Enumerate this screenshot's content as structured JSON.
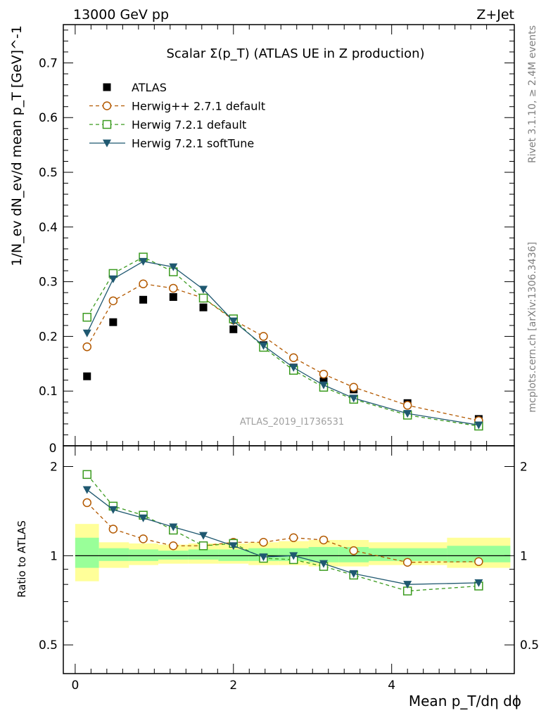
{
  "header": {
    "energy": "13000 GeV pp",
    "process": "Z+Jet"
  },
  "side_labels": {
    "rivet": "Rivet 3.1.10, ≥ 2.4M events",
    "mcplots": "mcplots.cern.ch [arXiv:1306.3436]"
  },
  "chart_data": [
    {
      "type": "scatter",
      "panel": "main",
      "title": "Scalar Σ(p_T) (ATLAS UE in Z production)",
      "xlabel": "Mean p_T/dη dϕ",
      "ylabel": "1/N_ev dN_ev/d mean p_T [GeV]^-1",
      "xlim": [
        -0.15,
        5.55
      ],
      "ylim": [
        0,
        0.77
      ],
      "y_ticks": [
        "0.1",
        "0.2",
        "0.3",
        "0.4",
        "0.5",
        "0.6",
        "0.7"
      ],
      "reference": "ATLAS_2019_I1736531",
      "legend_position": "top-left",
      "x": [
        0.15,
        0.48,
        0.86,
        1.24,
        1.62,
        2.0,
        2.38,
        2.76,
        3.14,
        3.52,
        4.2,
        5.1
      ],
      "series": [
        {
          "name": "ATLAS",
          "style": "data",
          "color": "#000000",
          "values": [
            0.127,
            0.226,
            0.267,
            0.272,
            0.253,
            0.213,
            0.184,
            0.143,
            0.118,
            0.103,
            0.078,
            0.049
          ]
        },
        {
          "name": "Herwig++ 2.7.1 default",
          "style": "circle-dashed",
          "color": "#b35900",
          "values": [
            0.181,
            0.265,
            0.296,
            0.288,
            0.27,
            0.23,
            0.2,
            0.161,
            0.131,
            0.107,
            0.074,
            0.046
          ]
        },
        {
          "name": "Herwig 7.2.1 default",
          "style": "square-dashed",
          "color": "#3a9a1e",
          "values": [
            0.235,
            0.315,
            0.345,
            0.318,
            0.27,
            0.232,
            0.18,
            0.138,
            0.107,
            0.085,
            0.056,
            0.036
          ]
        },
        {
          "name": "Herwig 7.2.1 softTune",
          "style": "triangle-solid",
          "color": "#1f5870",
          "values": [
            0.206,
            0.305,
            0.337,
            0.327,
            0.286,
            0.228,
            0.183,
            0.143,
            0.111,
            0.087,
            0.059,
            0.038
          ]
        }
      ]
    },
    {
      "type": "line",
      "panel": "ratio",
      "ylabel": "Ratio to ATLAS",
      "scale": "log",
      "ylim": [
        0.4,
        2.35
      ],
      "x_ticks": [
        "0",
        "2",
        "4"
      ],
      "y_ticks": [
        "0.5",
        "1",
        "2"
      ],
      "band_edges": [
        0,
        0.3,
        0.68,
        1.05,
        1.43,
        1.81,
        2.19,
        2.57,
        2.95,
        3.33,
        3.71,
        4.7,
        5.5
      ],
      "band_yellow": [
        [
          0.82,
          1.28
        ],
        [
          0.91,
          1.11
        ],
        [
          0.93,
          1.1
        ],
        [
          0.94,
          1.09
        ],
        [
          0.94,
          1.1
        ],
        [
          0.94,
          1.1
        ],
        [
          0.93,
          1.11
        ],
        [
          0.93,
          1.12
        ],
        [
          0.92,
          1.13
        ],
        [
          0.92,
          1.13
        ],
        [
          0.93,
          1.11
        ],
        [
          0.91,
          1.15
        ]
      ],
      "band_green": [
        [
          0.91,
          1.15
        ],
        [
          0.96,
          1.06
        ],
        [
          0.96,
          1.05
        ],
        [
          0.97,
          1.04
        ],
        [
          0.97,
          1.05
        ],
        [
          0.96,
          1.05
        ],
        [
          0.96,
          1.06
        ],
        [
          0.96,
          1.06
        ],
        [
          0.95,
          1.07
        ],
        [
          0.95,
          1.07
        ],
        [
          0.96,
          1.06
        ],
        [
          0.95,
          1.08
        ]
      ],
      "x": [
        0.15,
        0.48,
        0.86,
        1.24,
        1.62,
        2.0,
        2.38,
        2.76,
        3.14,
        3.52,
        4.2,
        5.1
      ],
      "series": [
        {
          "name": "Herwig++ 2.7.1 default",
          "style": "circle-dashed",
          "color": "#b35900",
          "values": [
            1.51,
            1.23,
            1.14,
            1.08,
            1.08,
            1.11,
            1.11,
            1.15,
            1.13,
            1.04,
            0.95,
            0.955
          ]
        },
        {
          "name": "Herwig 7.2.1 default",
          "style": "square-dashed",
          "color": "#3a9a1e",
          "values": [
            1.88,
            1.47,
            1.37,
            1.22,
            1.08,
            1.1,
            0.98,
            0.97,
            0.92,
            0.86,
            0.76,
            0.79
          ]
        },
        {
          "name": "Herwig 7.2.1 softTune",
          "style": "triangle-solid",
          "color": "#1f5870",
          "values": [
            1.67,
            1.43,
            1.34,
            1.25,
            1.17,
            1.08,
            0.99,
            1.0,
            0.94,
            0.87,
            0.8,
            0.81
          ]
        }
      ]
    }
  ]
}
